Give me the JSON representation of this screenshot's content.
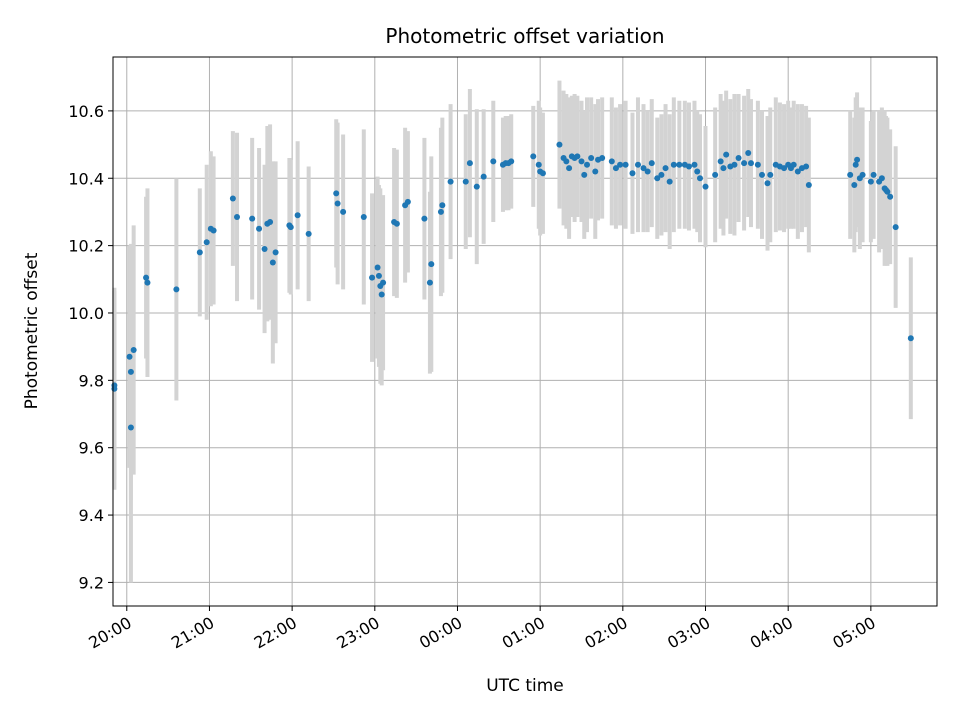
{
  "chart_data": {
    "type": "scatter",
    "title": "Photometric offset variation",
    "xlabel": "UTC time",
    "ylabel": "Photometric offset",
    "x_tick_labels": [
      "20:00",
      "21:00",
      "22:00",
      "23:00",
      "00:00",
      "01:00",
      "02:00",
      "03:00",
      "04:00",
      "05:00"
    ],
    "y_ticks": [
      9.2,
      9.4,
      9.6,
      9.8,
      10.0,
      10.2,
      10.4,
      10.6
    ],
    "y_tick_labels": [
      "9.2",
      "9.4",
      "9.6",
      "9.8",
      "10.0",
      "10.2",
      "10.4",
      "10.6"
    ],
    "xlim": [
      "19:50",
      "05:48"
    ],
    "ylim": [
      9.13,
      10.76
    ],
    "grid": true,
    "colors": {
      "point": "#1f77b4",
      "errorbar": "#d3d3d3",
      "grid": "#b0b0b0"
    },
    "series": [
      {
        "points": [
          {
            "x": "19:51",
            "y": 9.775,
            "err": 0.3
          },
          {
            "x": "19:51",
            "y": 9.785,
            "err": 0.28
          },
          {
            "x": "20:02",
            "y": 9.87,
            "err": 0.33
          },
          {
            "x": "20:03",
            "y": 9.825,
            "err": 0.38
          },
          {
            "x": "20:03",
            "y": 9.66,
            "err": 0.46
          },
          {
            "x": "20:05",
            "y": 9.89,
            "err": 0.37
          },
          {
            "x": "20:14",
            "y": 10.105,
            "err": 0.24
          },
          {
            "x": "20:15",
            "y": 10.09,
            "err": 0.28
          },
          {
            "x": "20:36",
            "y": 10.07,
            "err": 0.33
          },
          {
            "x": "20:53",
            "y": 10.18,
            "err": 0.19
          },
          {
            "x": "20:58",
            "y": 10.21,
            "err": 0.23
          },
          {
            "x": "21:01",
            "y": 10.25,
            "err": 0.23
          },
          {
            "x": "21:03",
            "y": 10.245,
            "err": 0.22
          },
          {
            "x": "21:17",
            "y": 10.34,
            "err": 0.2
          },
          {
            "x": "21:20",
            "y": 10.285,
            "err": 0.25
          },
          {
            "x": "21:31",
            "y": 10.28,
            "err": 0.24
          },
          {
            "x": "21:36",
            "y": 10.25,
            "err": 0.24
          },
          {
            "x": "21:40",
            "y": 10.19,
            "err": 0.25
          },
          {
            "x": "21:42",
            "y": 10.265,
            "err": 0.29
          },
          {
            "x": "21:44",
            "y": 10.27,
            "err": 0.29
          },
          {
            "x": "21:46",
            "y": 10.15,
            "err": 0.3
          },
          {
            "x": "21:48",
            "y": 10.18,
            "err": 0.27
          },
          {
            "x": "21:58",
            "y": 10.26,
            "err": 0.2
          },
          {
            "x": "21:59",
            "y": 10.255,
            "err": 0.2
          },
          {
            "x": "22:04",
            "y": 10.29,
            "err": 0.22
          },
          {
            "x": "22:12",
            "y": 10.235,
            "err": 0.2
          },
          {
            "x": "22:32",
            "y": 10.355,
            "err": 0.22
          },
          {
            "x": "22:33",
            "y": 10.325,
            "err": 0.24
          },
          {
            "x": "22:37",
            "y": 10.3,
            "err": 0.23
          },
          {
            "x": "22:52",
            "y": 10.285,
            "err": 0.26
          },
          {
            "x": "22:58",
            "y": 10.105,
            "err": 0.25
          },
          {
            "x": "23:02",
            "y": 10.135,
            "err": 0.27
          },
          {
            "x": "23:03",
            "y": 10.11,
            "err": 0.27
          },
          {
            "x": "23:04",
            "y": 10.08,
            "err": 0.29
          },
          {
            "x": "23:05",
            "y": 10.055,
            "err": 0.27
          },
          {
            "x": "23:06",
            "y": 10.09,
            "err": 0.26
          },
          {
            "x": "23:14",
            "y": 10.27,
            "err": 0.22
          },
          {
            "x": "23:16",
            "y": 10.265,
            "err": 0.22
          },
          {
            "x": "23:22",
            "y": 10.32,
            "err": 0.23
          },
          {
            "x": "23:24",
            "y": 10.33,
            "err": 0.21
          },
          {
            "x": "23:36",
            "y": 10.28,
            "err": 0.24
          },
          {
            "x": "23:40",
            "y": 10.09,
            "err": 0.27
          },
          {
            "x": "23:41",
            "y": 10.145,
            "err": 0.32
          },
          {
            "x": "23:48",
            "y": 10.3,
            "err": 0.25
          },
          {
            "x": "23:49",
            "y": 10.32,
            "err": 0.26
          },
          {
            "x": "23:55",
            "y": 10.39,
            "err": 0.23
          },
          {
            "x": "00:06",
            "y": 10.39,
            "err": 0.2
          },
          {
            "x": "00:09",
            "y": 10.445,
            "err": 0.22
          },
          {
            "x": "00:14",
            "y": 10.375,
            "err": 0.23
          },
          {
            "x": "00:19",
            "y": 10.405,
            "err": 0.2
          },
          {
            "x": "00:26",
            "y": 10.45,
            "err": 0.18
          },
          {
            "x": "00:33",
            "y": 10.44,
            "err": 0.14
          },
          {
            "x": "00:35",
            "y": 10.445,
            "err": 0.14
          },
          {
            "x": "00:37",
            "y": 10.445,
            "err": 0.14
          },
          {
            "x": "00:39",
            "y": 10.45,
            "err": 0.14
          },
          {
            "x": "00:55",
            "y": 10.465,
            "err": 0.15
          },
          {
            "x": "00:59",
            "y": 10.44,
            "err": 0.19
          },
          {
            "x": "01:00",
            "y": 10.42,
            "err": 0.19
          },
          {
            "x": "01:02",
            "y": 10.415,
            "err": 0.18
          },
          {
            "x": "01:14",
            "y": 10.5,
            "err": 0.19
          },
          {
            "x": "01:17",
            "y": 10.46,
            "err": 0.2
          },
          {
            "x": "01:19",
            "y": 10.45,
            "err": 0.2
          },
          {
            "x": "01:21",
            "y": 10.43,
            "err": 0.21
          },
          {
            "x": "01:23",
            "y": 10.465,
            "err": 0.18
          },
          {
            "x": "01:25",
            "y": 10.46,
            "err": 0.19
          },
          {
            "x": "01:27",
            "y": 10.465,
            "err": 0.18
          },
          {
            "x": "01:30",
            "y": 10.45,
            "err": 0.18
          },
          {
            "x": "01:32",
            "y": 10.41,
            "err": 0.19
          },
          {
            "x": "01:34",
            "y": 10.44,
            "err": 0.2
          },
          {
            "x": "01:37",
            "y": 10.46,
            "err": 0.18
          },
          {
            "x": "01:40",
            "y": 10.42,
            "err": 0.2
          },
          {
            "x": "01:42",
            "y": 10.455,
            "err": 0.18
          },
          {
            "x": "01:45",
            "y": 10.46,
            "err": 0.18
          },
          {
            "x": "01:52",
            "y": 10.45,
            "err": 0.19
          },
          {
            "x": "01:55",
            "y": 10.43,
            "err": 0.18
          },
          {
            "x": "01:58",
            "y": 10.44,
            "err": 0.18
          },
          {
            "x": "02:02",
            "y": 10.44,
            "err": 0.19
          },
          {
            "x": "02:07",
            "y": 10.415,
            "err": 0.18
          },
          {
            "x": "02:11",
            "y": 10.44,
            "err": 0.2
          },
          {
            "x": "02:15",
            "y": 10.43,
            "err": 0.19
          },
          {
            "x": "02:18",
            "y": 10.42,
            "err": 0.18
          },
          {
            "x": "02:21",
            "y": 10.445,
            "err": 0.19
          },
          {
            "x": "02:25",
            "y": 10.4,
            "err": 0.18
          },
          {
            "x": "02:28",
            "y": 10.41,
            "err": 0.18
          },
          {
            "x": "02:31",
            "y": 10.43,
            "err": 0.19
          },
          {
            "x": "02:34",
            "y": 10.39,
            "err": 0.2
          },
          {
            "x": "02:37",
            "y": 10.44,
            "err": 0.2
          },
          {
            "x": "02:41",
            "y": 10.44,
            "err": 0.19
          },
          {
            "x": "02:45",
            "y": 10.44,
            "err": 0.19
          },
          {
            "x": "02:48",
            "y": 10.435,
            "err": 0.19
          },
          {
            "x": "02:52",
            "y": 10.44,
            "err": 0.19
          },
          {
            "x": "02:54",
            "y": 10.42,
            "err": 0.18
          },
          {
            "x": "02:56",
            "y": 10.4,
            "err": 0.19
          },
          {
            "x": "03:00",
            "y": 10.375,
            "err": 0.18
          },
          {
            "x": "03:07",
            "y": 10.41,
            "err": 0.2
          },
          {
            "x": "03:11",
            "y": 10.45,
            "err": 0.2
          },
          {
            "x": "03:13",
            "y": 10.43,
            "err": 0.2
          },
          {
            "x": "03:15",
            "y": 10.47,
            "err": 0.19
          },
          {
            "x": "03:18",
            "y": 10.435,
            "err": 0.2
          },
          {
            "x": "03:21",
            "y": 10.44,
            "err": 0.21
          },
          {
            "x": "03:24",
            "y": 10.46,
            "err": 0.19
          },
          {
            "x": "03:28",
            "y": 10.445,
            "err": 0.2
          },
          {
            "x": "03:31",
            "y": 10.475,
            "err": 0.19
          },
          {
            "x": "03:33",
            "y": 10.445,
            "err": 0.19
          },
          {
            "x": "03:38",
            "y": 10.44,
            "err": 0.19
          },
          {
            "x": "03:41",
            "y": 10.41,
            "err": 0.19
          },
          {
            "x": "03:45",
            "y": 10.385,
            "err": 0.2
          },
          {
            "x": "03:47",
            "y": 10.41,
            "err": 0.2
          },
          {
            "x": "03:51",
            "y": 10.44,
            "err": 0.2
          },
          {
            "x": "03:54",
            "y": 10.435,
            "err": 0.19
          },
          {
            "x": "03:57",
            "y": 10.43,
            "err": 0.19
          },
          {
            "x": "04:00",
            "y": 10.44,
            "err": 0.19
          },
          {
            "x": "04:02",
            "y": 10.43,
            "err": 0.18
          },
          {
            "x": "04:04",
            "y": 10.44,
            "err": 0.19
          },
          {
            "x": "04:07",
            "y": 10.42,
            "err": 0.2
          },
          {
            "x": "04:10",
            "y": 10.43,
            "err": 0.19
          },
          {
            "x": "04:13",
            "y": 10.435,
            "err": 0.18
          },
          {
            "x": "04:15",
            "y": 10.38,
            "err": 0.2
          },
          {
            "x": "04:45",
            "y": 10.41,
            "err": 0.19
          },
          {
            "x": "04:48",
            "y": 10.38,
            "err": 0.2
          },
          {
            "x": "04:49",
            "y": 10.44,
            "err": 0.2
          },
          {
            "x": "04:50",
            "y": 10.455,
            "err": 0.2
          },
          {
            "x": "04:52",
            "y": 10.4,
            "err": 0.21
          },
          {
            "x": "04:54",
            "y": 10.41,
            "err": 0.2
          },
          {
            "x": "05:00",
            "y": 10.39,
            "err": 0.18
          },
          {
            "x": "05:02",
            "y": 10.41,
            "err": 0.19
          },
          {
            "x": "05:06",
            "y": 10.39,
            "err": 0.21
          },
          {
            "x": "05:08",
            "y": 10.4,
            "err": 0.21
          },
          {
            "x": "05:10",
            "y": 10.37,
            "err": 0.23
          },
          {
            "x": "05:11",
            "y": 10.365,
            "err": 0.22
          },
          {
            "x": "05:12",
            "y": 10.36,
            "err": 0.22
          },
          {
            "x": "05:14",
            "y": 10.345,
            "err": 0.2
          },
          {
            "x": "05:18",
            "y": 10.255,
            "err": 0.24
          },
          {
            "x": "05:29",
            "y": 9.925,
            "err": 0.24
          }
        ]
      }
    ]
  }
}
